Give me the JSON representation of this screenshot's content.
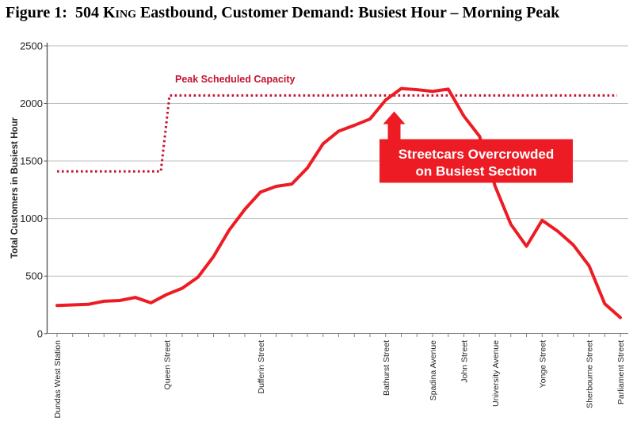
{
  "figure_title": {
    "prefix": "Figure 1:  504 ",
    "route_smallcaps": "King",
    "suffix": " Eastbound, Customer Demand: Busiest Hour – Morning Peak"
  },
  "chart_data": {
    "type": "line",
    "title": "504 King Eastbound, Customer Demand: Busiest Hour – Morning Peak",
    "xlabel": "",
    "ylabel": "Total Customers in Busiest Hour",
    "ylim": [
      0,
      2500
    ],
    "yticks": [
      0,
      500,
      1000,
      1500,
      2000,
      2500
    ],
    "grid": "horizontal-light-gray",
    "legend": "none",
    "n_points": 37,
    "x_axis_note": "37 stop ticks along route; only major stops labeled",
    "stop_labels": [
      {
        "i": 0,
        "label": "Dundas West Station"
      },
      {
        "i": 7,
        "label": "Queen Street"
      },
      {
        "i": 13,
        "label": "Dufferin Street"
      },
      {
        "i": 21,
        "label": "Bathurst Street"
      },
      {
        "i": 24,
        "label": "Spadina Avenue"
      },
      {
        "i": 26,
        "label": "John Street"
      },
      {
        "i": 28,
        "label": "University Avenue"
      },
      {
        "i": 31,
        "label": "Yonge Street"
      },
      {
        "i": 34,
        "label": "Sherbourne Street"
      },
      {
        "i": 36,
        "label": "Parliament Street"
      }
    ],
    "series": [
      {
        "name": "Customer Demand",
        "style": "solid",
        "color": "#ed1c24",
        "values": [
          245,
          250,
          255,
          282,
          288,
          315,
          268,
          340,
          395,
          490,
          670,
          900,
          1080,
          1230,
          1280,
          1300,
          1440,
          1650,
          1760,
          1810,
          1865,
          2030,
          2130,
          2120,
          2105,
          2125,
          1890,
          1715,
          1280,
          950,
          760,
          985,
          890,
          770,
          590,
          260,
          140
        ]
      },
      {
        "name": "Peak Scheduled Capacity",
        "style": "dotted",
        "color": "#c3132f",
        "capacity_before_step": 1410,
        "capacity_after_step": 2070,
        "step_at_stop": "Queen Street",
        "values": [
          1410,
          1410,
          1410,
          1410,
          1410,
          1410,
          1410,
          2070,
          2070,
          2070,
          2070,
          2070,
          2070,
          2070,
          2070,
          2070,
          2070,
          2070,
          2070,
          2070,
          2070,
          2070,
          2070,
          2070,
          2070,
          2070,
          2070,
          2070,
          2070,
          2070,
          2070,
          2070,
          2070,
          2070,
          2070,
          2070,
          2070
        ]
      }
    ],
    "annotations": {
      "capacity_label": {
        "text": "Peak Scheduled Capacity",
        "color": "#c3132f"
      },
      "overcrowded_callout": {
        "line1": "Streetcars Overcrowded",
        "line2": "on Busiest Section",
        "fill": "#ed1c24",
        "text_color": "#ffffff",
        "arrow": "up"
      }
    },
    "colors": {
      "demand_line": "#ed1c24",
      "capacity_line": "#c3132f",
      "gridline": "#bfbfbf",
      "axis": "#595959",
      "tick": "#808080",
      "text": "#262626"
    }
  }
}
